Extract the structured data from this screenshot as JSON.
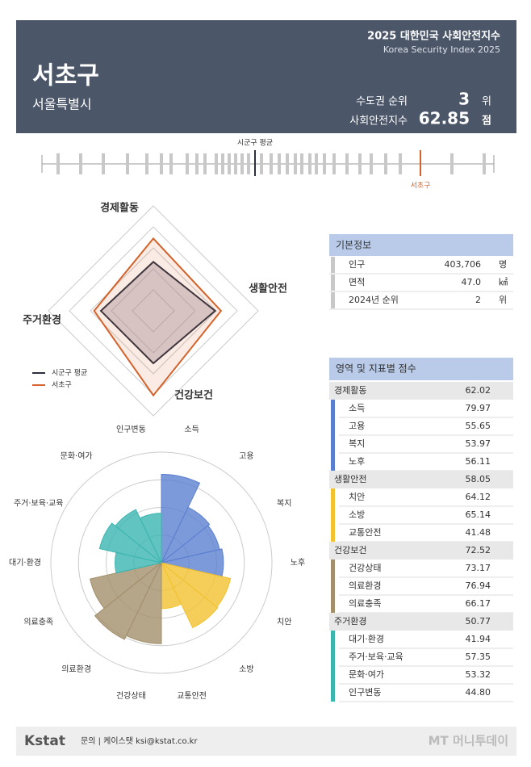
{
  "header": {
    "title": "2025 대한민국 사회안전지수",
    "subtitle": "Korea Security Index 2025",
    "district": "서초구",
    "city": "서울특별시",
    "rank_label": "수도권 순위",
    "rank": "3",
    "rank_unit": "위",
    "score_label": "사회안전지수",
    "score": "62.85",
    "score_unit": "점"
  },
  "strip": {
    "average_label": "시군구 평균",
    "district_label": "서초구"
  },
  "chart_data": [
    {
      "type": "radar",
      "categories": [
        "경제활동",
        "생활안전",
        "건강보건",
        "주거환경"
      ],
      "rlim": [
        0,
        90
      ],
      "series": [
        {
          "name": "시군구 평균",
          "color": "#2b3040",
          "values": [
            42,
            53,
            45,
            45
          ]
        },
        {
          "name": "서초구",
          "color": "#d4622a",
          "values": [
            62.02,
            58.05,
            72.52,
            50.77
          ]
        }
      ]
    },
    {
      "type": "polar_bar",
      "categories": [
        "소득",
        "고용",
        "복지",
        "노후",
        "치안",
        "소방",
        "교통안전",
        "건강상태",
        "의료환경",
        "의료충족",
        "대기·환경",
        "주거·보육·교육",
        "문화·여가",
        "인구변동"
      ],
      "values": [
        79.97,
        55.65,
        53.97,
        56.11,
        64.12,
        65.14,
        41.48,
        73.17,
        76.94,
        66.17,
        41.94,
        57.35,
        53.32,
        44.8
      ],
      "colors": [
        "#5b7fd0",
        "#5b7fd0",
        "#5b7fd0",
        "#5b7fd0",
        "#f2c230",
        "#f2c230",
        "#f2c230",
        "#a38f6b",
        "#a38f6b",
        "#a38f6b",
        "#3bb5b0",
        "#3bb5b0",
        "#3bb5b0",
        "#3bb5b0"
      ],
      "rlim": [
        0,
        100
      ]
    }
  ],
  "basic_info": {
    "title": "기본정보",
    "rows": [
      {
        "label": "인구",
        "value": "403,706",
        "unit": "명"
      },
      {
        "label": "면적",
        "value": "47.0",
        "unit": "㎢"
      },
      {
        "label": "2024년 순위",
        "value": "2",
        "unit": "위"
      }
    ]
  },
  "scores": {
    "title": "영역 및 지표별 점수",
    "groups": [
      {
        "name": "경제활동",
        "score": "62.02",
        "color": "#5b7fd0",
        "items": [
          {
            "name": "소득",
            "score": "79.97"
          },
          {
            "name": "고용",
            "score": "55.65"
          },
          {
            "name": "복지",
            "score": "53.97"
          },
          {
            "name": "노후",
            "score": "56.11"
          }
        ]
      },
      {
        "name": "생활안전",
        "score": "58.05",
        "color": "#f2c230",
        "items": [
          {
            "name": "치안",
            "score": "64.12"
          },
          {
            "name": "소방",
            "score": "65.14"
          },
          {
            "name": "교통안전",
            "score": "41.48"
          }
        ]
      },
      {
        "name": "건강보건",
        "score": "72.52",
        "color": "#a38f6b",
        "items": [
          {
            "name": "건강상태",
            "score": "73.17"
          },
          {
            "name": "의료환경",
            "score": "76.94"
          },
          {
            "name": "의료충족",
            "score": "66.17"
          }
        ]
      },
      {
        "name": "주거환경",
        "score": "50.77",
        "color": "#3bb5b0",
        "items": [
          {
            "name": "대기·환경",
            "score": "41.94"
          },
          {
            "name": "주거·보육·교육",
            "score": "57.35"
          },
          {
            "name": "문화·여가",
            "score": "53.32"
          },
          {
            "name": "인구변동",
            "score": "44.80"
          }
        ]
      }
    ]
  },
  "footer": {
    "logo": "Kstat",
    "contact": "문의 | 케이스탯 ksi@kstat.co.kr",
    "watermark": "MT 머니투데이"
  }
}
